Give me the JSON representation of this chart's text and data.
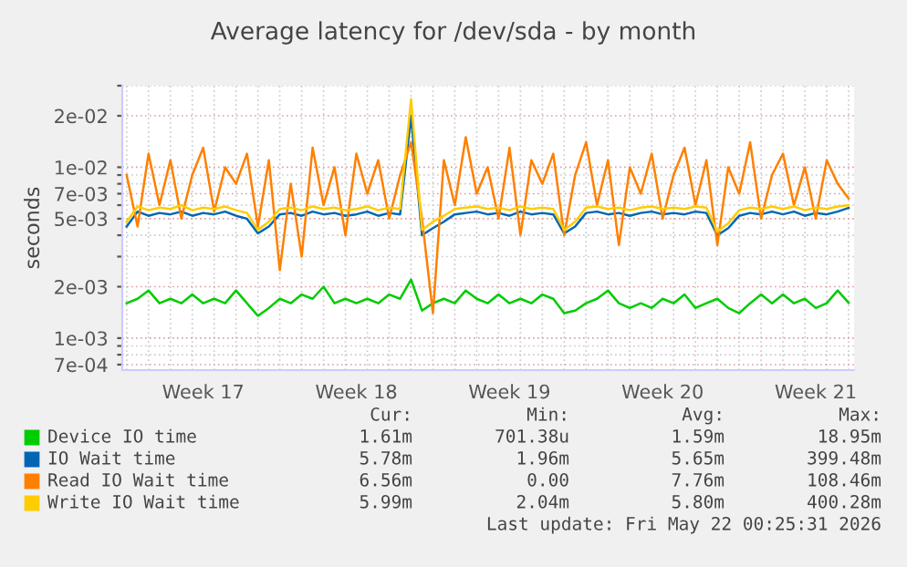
{
  "chart_data": {
    "type": "line",
    "title": "Average latency for /dev/sda - by month",
    "ylabel": "seconds",
    "categories": [
      null,
      null,
      null,
      null,
      null,
      null,
      null,
      "Week 17",
      null,
      null,
      null,
      null,
      null,
      null,
      null,
      null,
      null,
      null,
      null,
      null,
      null,
      "Week 18",
      null,
      null,
      null,
      null,
      null,
      null,
      null,
      null,
      null,
      null,
      null,
      null,
      null,
      "Week 19",
      null,
      null,
      null,
      null,
      null,
      null,
      null,
      null,
      null,
      null,
      null,
      null,
      null,
      "Week 20",
      null,
      null,
      null,
      null,
      null,
      null,
      null,
      null,
      null,
      null,
      null,
      null,
      null,
      "Week 21",
      null,
      null,
      null
    ],
    "series": [
      {
        "name": "Device IO time",
        "color": "#00cc00",
        "values": [
          0.0016,
          0.0017,
          0.0019,
          0.0016,
          0.0017,
          0.0016,
          0.0018,
          0.0016,
          0.0017,
          0.0016,
          0.0019,
          0.0016,
          0.00135,
          0.0015,
          0.0017,
          0.0016,
          0.0018,
          0.0017,
          0.002,
          0.0016,
          0.0017,
          0.0016,
          0.0017,
          0.0016,
          0.0018,
          0.0017,
          0.0022,
          0.00145,
          0.0016,
          0.0017,
          0.0016,
          0.0019,
          0.0017,
          0.0016,
          0.0018,
          0.0016,
          0.0017,
          0.0016,
          0.0018,
          0.0017,
          0.0014,
          0.00145,
          0.0016,
          0.0017,
          0.0019,
          0.0016,
          0.0015,
          0.0016,
          0.0015,
          0.0017,
          0.0016,
          0.0018,
          0.0015,
          0.0016,
          0.0017,
          0.0015,
          0.0014,
          0.0016,
          0.0018,
          0.0016,
          0.0018,
          0.0016,
          0.0017,
          0.0015,
          0.0016,
          0.0019,
          0.00161
        ]
      },
      {
        "name": "IO Wait time",
        "color": "#0066b3",
        "values": [
          0.0045,
          0.0055,
          0.0052,
          0.0054,
          0.0053,
          0.0055,
          0.0052,
          0.0054,
          0.0053,
          0.0055,
          0.0052,
          0.005,
          0.0041,
          0.0045,
          0.0053,
          0.0054,
          0.0052,
          0.0055,
          0.0053,
          0.0054,
          0.0052,
          0.0053,
          0.0055,
          0.0052,
          0.0054,
          0.0053,
          0.02,
          0.004,
          0.0044,
          0.0048,
          0.0053,
          0.0054,
          0.0055,
          0.0053,
          0.0054,
          0.0052,
          0.0055,
          0.0053,
          0.0054,
          0.0053,
          0.0041,
          0.0045,
          0.0054,
          0.0055,
          0.0053,
          0.0054,
          0.0052,
          0.0054,
          0.0055,
          0.0053,
          0.0054,
          0.0053,
          0.0055,
          0.0054,
          0.004,
          0.0044,
          0.0052,
          0.0054,
          0.0053,
          0.0055,
          0.0053,
          0.0055,
          0.0052,
          0.0054,
          0.0053,
          0.0055,
          0.00578
        ]
      },
      {
        "name": "Read IO Wait time",
        "color": "#ff8000",
        "values": [
          0.009,
          0.0045,
          0.012,
          0.006,
          0.011,
          0.005,
          0.009,
          0.013,
          0.0055,
          0.01,
          0.008,
          0.012,
          0.0045,
          0.011,
          0.0025,
          0.008,
          0.003,
          0.013,
          0.006,
          0.01,
          0.004,
          0.012,
          0.007,
          0.011,
          0.005,
          0.009,
          0.014,
          0.005,
          0.0014,
          0.011,
          0.006,
          0.015,
          0.007,
          0.01,
          0.005,
          0.013,
          0.004,
          0.011,
          0.008,
          0.012,
          0.004,
          0.009,
          0.014,
          0.006,
          0.011,
          0.0035,
          0.01,
          0.007,
          0.012,
          0.005,
          0.009,
          0.013,
          0.006,
          0.011,
          0.0035,
          0.01,
          0.007,
          0.014,
          0.005,
          0.009,
          0.012,
          0.006,
          0.01,
          0.005,
          0.011,
          0.008,
          0.00656
        ]
      },
      {
        "name": "Write IO Wait time",
        "color": "#ffcc00",
        "values": [
          0.0048,
          0.0059,
          0.0056,
          0.0058,
          0.0057,
          0.006,
          0.0056,
          0.0058,
          0.0057,
          0.0059,
          0.0056,
          0.0054,
          0.0043,
          0.0048,
          0.0057,
          0.0058,
          0.0056,
          0.0059,
          0.0057,
          0.0058,
          0.0056,
          0.0057,
          0.0059,
          0.0056,
          0.0058,
          0.0057,
          0.025,
          0.0043,
          0.0048,
          0.0052,
          0.0057,
          0.0058,
          0.0059,
          0.0057,
          0.0058,
          0.0056,
          0.0059,
          0.0057,
          0.0058,
          0.0057,
          0.0043,
          0.0048,
          0.0058,
          0.0059,
          0.0057,
          0.0058,
          0.0056,
          0.0058,
          0.0059,
          0.0057,
          0.0058,
          0.0057,
          0.0059,
          0.0058,
          0.0042,
          0.0047,
          0.0056,
          0.0058,
          0.0057,
          0.0059,
          0.0057,
          0.0059,
          0.0056,
          0.0058,
          0.0057,
          0.0059,
          0.00599
        ]
      }
    ],
    "log": "y",
    "ylim": [
      0.00065,
      0.03
    ],
    "yticks": [
      {
        "value": 0.0007,
        "label": "7e-04"
      },
      {
        "value": 0.0008,
        "label": null
      },
      {
        "value": 0.0009,
        "label": null
      },
      {
        "value": 0.001,
        "label": "1e-03"
      },
      {
        "value": 0.002,
        "label": "2e-03"
      },
      {
        "value": 0.003,
        "label": null
      },
      {
        "value": 0.004,
        "label": null
      },
      {
        "value": 0.005,
        "label": "5e-03"
      },
      {
        "value": 0.006,
        "label": null
      },
      {
        "value": 0.007,
        "label": "7e-03"
      },
      {
        "value": 0.008,
        "label": null
      },
      {
        "value": 0.009,
        "label": null
      },
      {
        "value": 0.01,
        "label": "1e-02"
      },
      {
        "value": 0.02,
        "label": "2e-02"
      },
      {
        "value": 0.03,
        "label": null
      }
    ],
    "grid": true,
    "legend": "bottom",
    "marker": "none",
    "line_style": "solid",
    "annotations": [
      "Cur:",
      "Min:",
      "Avg:",
      "Max:",
      "1.61m",
      "701.38u",
      "1.59m",
      "18.95m",
      "5.78m",
      "1.96m",
      "5.65m",
      "399.48m",
      "6.56m",
      "0.00",
      "7.76m",
      "108.46m",
      "5.99m",
      "2.04m",
      "5.80m",
      "400.28m",
      "Last update: Fri May 22 00:25:31 2026"
    ]
  }
}
